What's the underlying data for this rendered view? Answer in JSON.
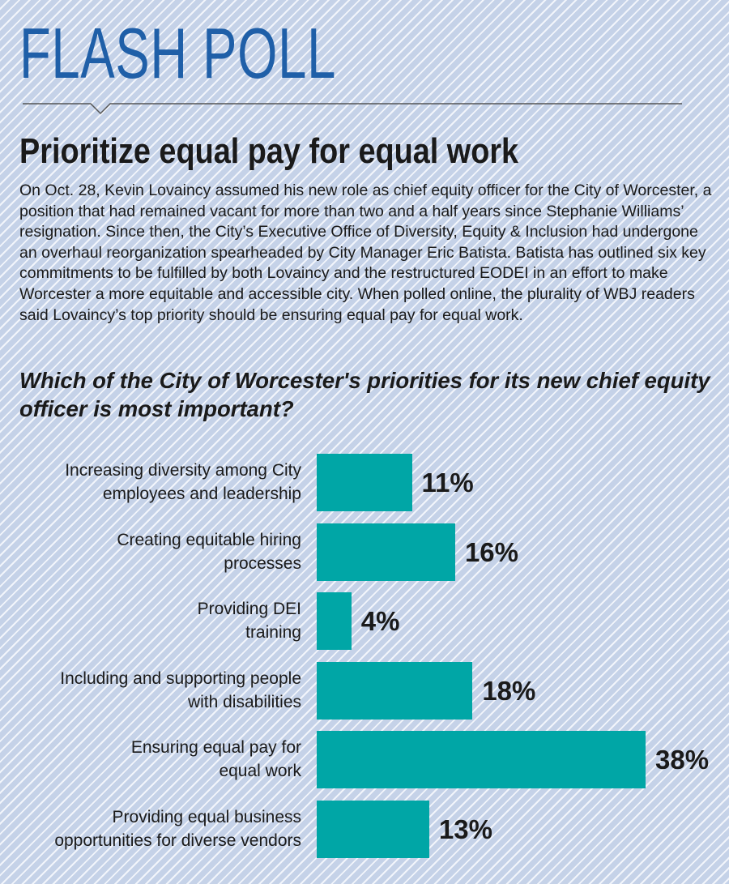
{
  "kicker": "FLASH POLL",
  "headline": "Prioritize equal pay for equal work",
  "intro": "On Oct. 28, Kevin Lovaincy assumed his new role as chief equity officer for the City of Worcester, a position that had remained vacant for more than two and a half years since Stephanie Williams’ resignation. Since then, the City’s Executive Office of Diversity, Equity & Inclusion had undergone an overhaul reorganization spearheaded by City Manager Eric Batista. Batista has outlined six key commitments to be fulfilled by both Lovaincy and the restructured EODEI in an effort to make Worcester a more equitable and accessible city. When polled online, the plurality of WBJ readers said Lovaincy’s top priority should be ensuring equal pay for equal work.",
  "colors": {
    "kicker": "#1f5fa8",
    "bar": "#00a6a6",
    "background": "#c5d2e8",
    "stripe": "#f2f5fb"
  },
  "chart_data": {
    "type": "bar",
    "orientation": "horizontal",
    "title": "Which of the City of Worcester's priorities for its new chief equity officer is most important?",
    "categories": [
      [
        "Increasing diversity among City",
        "employees and leadership"
      ],
      [
        "Creating equitable hiring",
        "processes"
      ],
      [
        "Providing DEI",
        "training"
      ],
      [
        "Including and supporting people",
        "with disabilities"
      ],
      [
        "Ensuring equal pay for",
        "equal work"
      ],
      [
        "Providing equal business",
        "opportunities for diverse vendors"
      ]
    ],
    "values": [
      11,
      16,
      4,
      18,
      38,
      13
    ],
    "value_labels": [
      "11%",
      "16%",
      "4%",
      "18%",
      "38%",
      "13%"
    ],
    "unit": "%",
    "xlim": [
      0,
      38
    ],
    "grid": false,
    "legend": "none"
  }
}
